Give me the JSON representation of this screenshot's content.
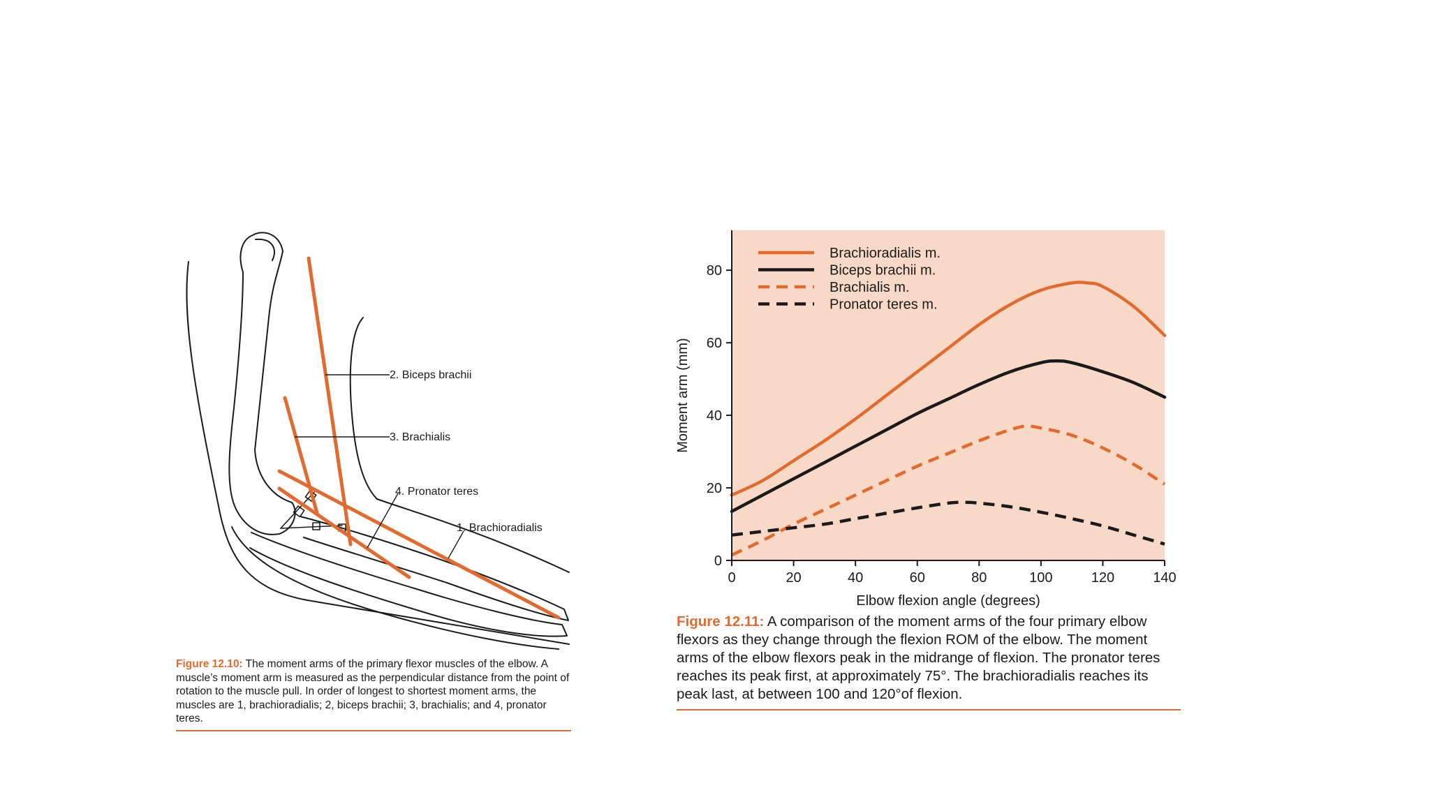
{
  "figure_12_10": {
    "labels": {
      "biceps": "2. Biceps brachii",
      "brachialis": "3. Brachialis",
      "pronator": "4. Pronator teres",
      "brachioradialis": "1. Brachioradialis"
    },
    "caption_label": "Figure 12.10:",
    "caption_text": "The moment arms of the primary flexor muscles of the elbow. A muscle’s moment arm is measured as the perpendicular distance from the point of rotation to the muscle pull. In order of longest to shortest moment arms, the muscles are 1, brachioradialis; 2, biceps brachii; 3, brachialis; and 4, pronator teres."
  },
  "figure_12_11": {
    "caption_label": "Figure 12.11:",
    "caption_text": "A comparison of the moment arms of the four primary elbow flexors as they change through the flexion ROM of the elbow. The moment arms of the elbow flexors peak in the midrange of flexion. The pronator teres reaches its peak first, at approximately 75°. The brachioradialis reaches its peak last, at between 100 and 120°of flexion."
  },
  "chart_data": {
    "type": "line",
    "title": "",
    "xlabel": "Elbow flexion angle (degrees)",
    "ylabel": "Moment arm (mm)",
    "xlim": [
      0,
      140
    ],
    "ylim": [
      0,
      91
    ],
    "xticks": [
      0,
      20,
      40,
      60,
      80,
      100,
      120,
      140
    ],
    "yticks": [
      0,
      20,
      40,
      60,
      80
    ],
    "grid": false,
    "legend_position": "top-left",
    "background_color": "#f8d9c7",
    "series": [
      {
        "name": "Brachioradialis m.",
        "color": "#e36a2f",
        "style": "solid",
        "x": [
          0,
          10,
          20,
          30,
          40,
          50,
          60,
          70,
          80,
          90,
          100,
          110,
          115,
          120,
          130,
          140
        ],
        "y": [
          18,
          22,
          27.5,
          33,
          39,
          45.5,
          52,
          58.5,
          65,
          70.5,
          74.5,
          76.5,
          76.5,
          75.5,
          70,
          62
        ]
      },
      {
        "name": "Biceps brachii m.",
        "color": "#1a1a1a",
        "style": "solid",
        "x": [
          0,
          10,
          20,
          30,
          40,
          50,
          60,
          70,
          80,
          90,
          100,
          105,
          110,
          120,
          130,
          140
        ],
        "y": [
          13.5,
          18,
          22.5,
          27,
          31.5,
          36,
          40.5,
          44.5,
          48.5,
          52,
          54.5,
          55,
          54.5,
          52,
          49,
          45
        ]
      },
      {
        "name": "Brachialis m.",
        "color": "#e36a2f",
        "style": "dashed",
        "x": [
          0,
          10,
          20,
          30,
          40,
          50,
          60,
          70,
          80,
          90,
          95,
          100,
          110,
          120,
          130,
          140
        ],
        "y": [
          1.5,
          5.5,
          10,
          14,
          18,
          22,
          26,
          29.5,
          33,
          36,
          37,
          36.5,
          34.5,
          31,
          26.5,
          21
        ]
      },
      {
        "name": "Pronator teres m.",
        "color": "#1a1a1a",
        "style": "dashed",
        "x": [
          0,
          10,
          20,
          30,
          40,
          50,
          60,
          70,
          75,
          80,
          90,
          100,
          110,
          120,
          130,
          140
        ],
        "y": [
          7,
          8,
          9,
          10,
          11.5,
          13,
          14.5,
          15.8,
          16,
          15.8,
          14.8,
          13.3,
          11.5,
          9.5,
          7,
          4.5
        ]
      }
    ]
  }
}
